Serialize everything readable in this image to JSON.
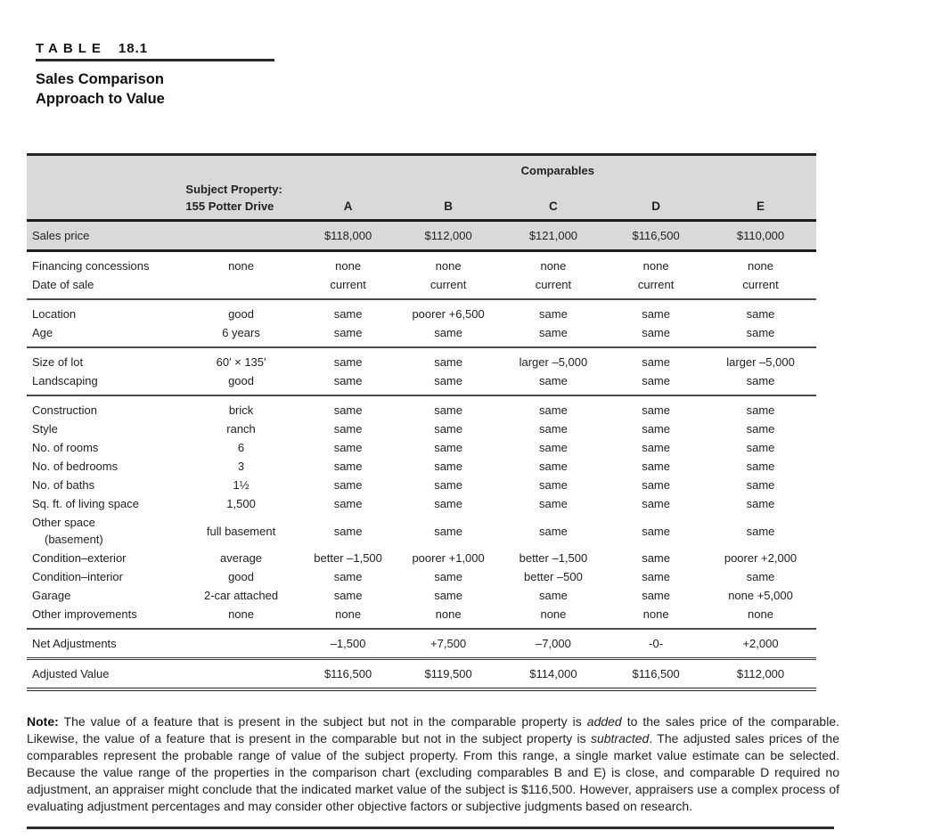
{
  "heading": {
    "tag_label": "TABLE",
    "tag_number": "18.1",
    "title_line1": "Sales Comparison",
    "title_line2": "Approach to Value"
  },
  "table": {
    "comparables_header": "Comparables",
    "subject_header_line1": "Subject Property:",
    "subject_header_line2": "155 Potter Drive",
    "column_letters": [
      "A",
      "B",
      "C",
      "D",
      "E"
    ],
    "groups": [
      {
        "shaded": true,
        "rows": [
          {
            "label": "Sales price",
            "subject": "",
            "values": [
              "$118,000",
              "$112,000",
              "$121,000",
              "$116,500",
              "$110,000"
            ]
          }
        ]
      },
      {
        "rows": [
          {
            "label": "Financing concessions",
            "subject": "none",
            "values": [
              "none",
              "none",
              "none",
              "none",
              "none"
            ]
          },
          {
            "label": "Date of sale",
            "subject": "",
            "values": [
              "current",
              "current",
              "current",
              "current",
              "current"
            ]
          }
        ]
      },
      {
        "rows": [
          {
            "label": "Location",
            "subject": "good",
            "values": [
              "same",
              "poorer +6,500",
              "same",
              "same",
              "same"
            ]
          },
          {
            "label": "Age",
            "subject": "6 years",
            "values": [
              "same",
              "same",
              "same",
              "same",
              "same"
            ]
          }
        ]
      },
      {
        "rows": [
          {
            "label": "Size of lot",
            "subject": "60′ × 135′",
            "values": [
              "same",
              "same",
              "larger –5,000",
              "same",
              "larger –5,000"
            ]
          },
          {
            "label": "Landscaping",
            "subject": "good",
            "values": [
              "same",
              "same",
              "same",
              "same",
              "same"
            ]
          }
        ]
      },
      {
        "rows": [
          {
            "label": "Construction",
            "subject": "brick",
            "values": [
              "same",
              "same",
              "same",
              "same",
              "same"
            ]
          },
          {
            "label": "Style",
            "subject": "ranch",
            "values": [
              "same",
              "same",
              "same",
              "same",
              "same"
            ]
          },
          {
            "label": "No. of rooms",
            "subject": "6",
            "values": [
              "same",
              "same",
              "same",
              "same",
              "same"
            ]
          },
          {
            "label": "No. of bedrooms",
            "subject": "3",
            "values": [
              "same",
              "same",
              "same",
              "same",
              "same"
            ]
          },
          {
            "label": "No. of baths",
            "subject": "1½",
            "values": [
              "same",
              "same",
              "same",
              "same",
              "same"
            ]
          },
          {
            "label": "Sq. ft. of living space",
            "subject": "1,500",
            "values": [
              "same",
              "same",
              "same",
              "same",
              "same"
            ]
          },
          {
            "label": "Other space",
            "label_line2": "(basement)",
            "subject": "full basement",
            "values": [
              "same",
              "same",
              "same",
              "same",
              "same"
            ]
          },
          {
            "label": "Condition–exterior",
            "subject": "average",
            "values": [
              "better –1,500",
              "poorer +1,000",
              "better –1,500",
              "same",
              "poorer +2,000"
            ]
          },
          {
            "label": "Condition–interior",
            "subject": "good",
            "values": [
              "same",
              "same",
              "better –500",
              "same",
              "same"
            ]
          },
          {
            "label": "Garage",
            "subject": "2-car attached",
            "values": [
              "same",
              "same",
              "same",
              "same",
              "none +5,000"
            ]
          },
          {
            "label": "Other improvements",
            "subject": "none",
            "values": [
              "none",
              "none",
              "none",
              "none",
              "none"
            ]
          }
        ]
      },
      {
        "rows": [
          {
            "label": "Net Adjustments",
            "subject": "",
            "values": [
              "–1,500",
              "+7,500",
              "–7,000",
              "-0-",
              "+2,000"
            ]
          }
        ]
      },
      {
        "rows": [
          {
            "label": "Adjusted Value",
            "subject": "",
            "values": [
              "$116,500",
              "$119,500",
              "$114,000",
              "$116,500",
              "$112,000"
            ]
          }
        ]
      }
    ]
  },
  "note": {
    "label": "Note:",
    "segments": [
      {
        "text": " The value of a feature that is present in the subject but not in the comparable property is "
      },
      {
        "text": "added",
        "italic": true
      },
      {
        "text": " to the sales price of the comparable. Likewise, the value of a feature that is present in the comparable but not in the subject property is "
      },
      {
        "text": "subtracted",
        "italic": true
      },
      {
        "text": ". The adjusted sales prices of the comparables represent the probable range of value of the subject property. From this range, a single market value estimate can be selected. Because the value range of the properties in the comparison chart (excluding comparables B and E) is close, and comparable D required no adjustment, an appraiser might conclude that the indicated market value of the subject is $116,500. However, appraisers use a complex process of evaluating adjustment percentages and may consider other objective factors or subjective judgments based on research."
      }
    ]
  },
  "colors": {
    "header_band": "#d9d9d9",
    "rule_dark": "#262626",
    "text": "#222222"
  }
}
